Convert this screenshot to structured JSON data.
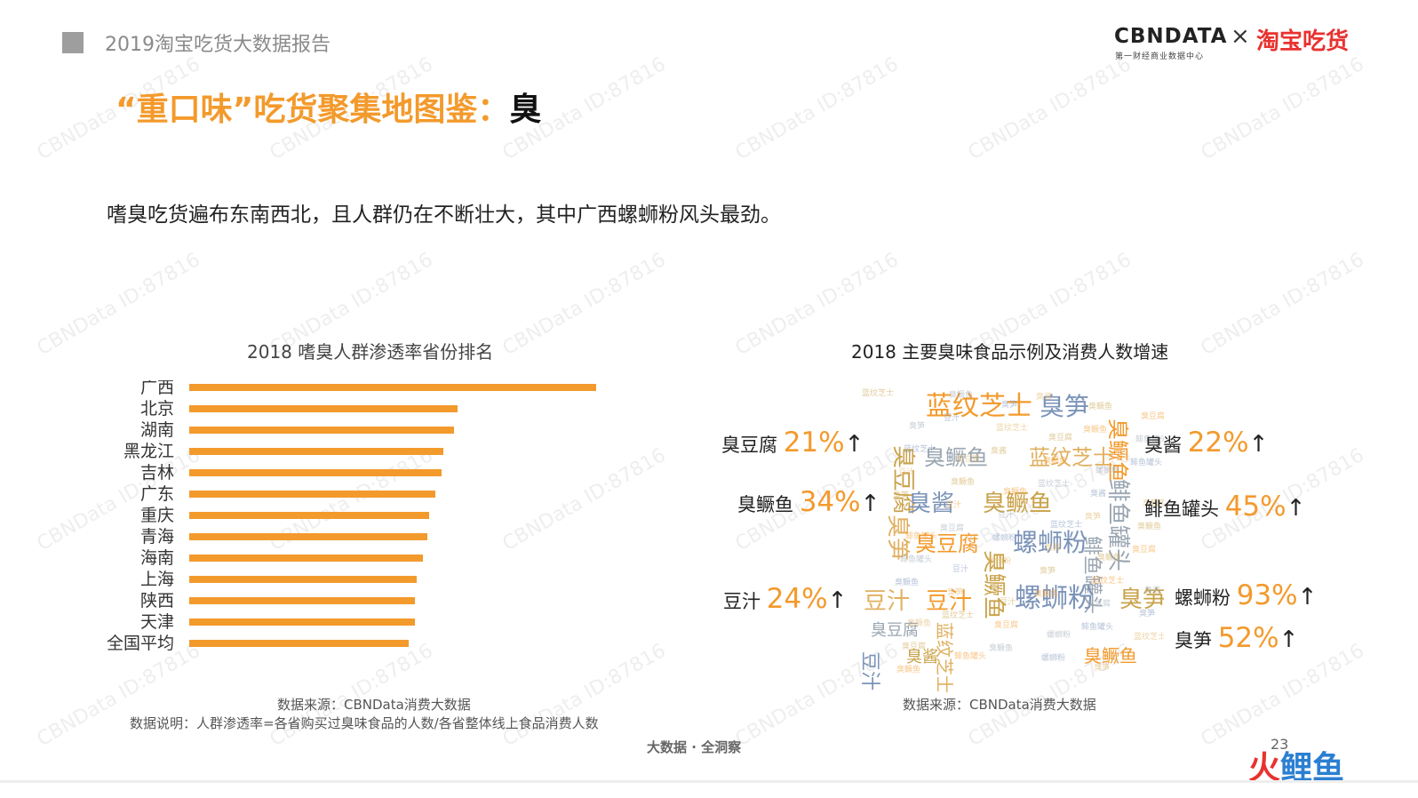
{
  "header": {
    "report_title": "2019淘宝吃货大数据报告",
    "heading_orange": "“重口味”吃货聚集地图鉴：",
    "heading_dark": "臭",
    "subtitle": "嗜臭吃货遍布东南西北，且人群仍在不断壮大，其中广西螺蛳粉风头最劲。"
  },
  "brand": {
    "cbn": "CBNDATA",
    "cbn_sub": "第一财经商业数据中心",
    "times": "×",
    "taobao": "淘宝吃货"
  },
  "bar_chart": {
    "title": "2018 嗜臭人群渗透率省份排名",
    "source": "数据来源：CBNData消费大数据",
    "explain": "数据说明：人群渗透率=各省购买过臭味食品的人数/各省整体线上食品消费人数"
  },
  "chart_data": {
    "type": "bar",
    "orientation": "horizontal",
    "categories": [
      "广西",
      "北京",
      "湖南",
      "黑龙江",
      "吉林",
      "广东",
      "重庆",
      "青海",
      "海南",
      "上海",
      "陕西",
      "天津",
      "全国平均"
    ],
    "values": [
      1.0,
      0.66,
      0.65,
      0.625,
      0.62,
      0.605,
      0.59,
      0.585,
      0.575,
      0.56,
      0.555,
      0.555,
      0.54
    ],
    "value_unit": "relative to 广西",
    "color": "#f39a2c",
    "xlabel": "",
    "ylabel": "",
    "grid": false,
    "legend": "none"
  },
  "cloud": {
    "title": "2018 主要臭味食品示例及消费人数增速",
    "source": "数据来源：CBNData消费大数据",
    "items": [
      {
        "name": "臭豆腐",
        "pct": "21%",
        "arrow": "↑"
      },
      {
        "name": "臭酱",
        "pct": "22%",
        "arrow": "↑"
      },
      {
        "name": "臭鳜鱼",
        "pct": "34%",
        "arrow": "↑"
      },
      {
        "name": "鲱鱼罐头",
        "pct": "45%",
        "arrow": "↑"
      },
      {
        "name": "豆汁",
        "pct": "24%",
        "arrow": "↑"
      },
      {
        "name": "螺蛳粉",
        "pct": "93%",
        "arrow": "↑"
      },
      {
        "name": "臭笋",
        "pct": "52%",
        "arrow": "↑"
      }
    ],
    "words": [
      "蓝纹芝士",
      "臭笋",
      "臭豆腐",
      "臭鳜鱼",
      "蓝纹芝士",
      "臭鳜鱼",
      "臭酱",
      "臭鳜鱼",
      "鲱鱼罐头",
      "臭笋",
      "臭豆腐",
      "螺蛳粉",
      "臭鳜鱼",
      "鲱鱼罐头",
      "豆汁",
      "豆汁",
      "螺蛳粉",
      "臭笋",
      "臭豆腐",
      "蓝纹芝士",
      "臭鳜鱼",
      "豆汁",
      "臭酱"
    ],
    "word_colors": [
      "#f39a2c",
      "#7b93b8",
      "#c9a24a",
      "#9aa6b2",
      "#e0b060"
    ]
  },
  "footer": {
    "tag": "大数据 · 全洞察",
    "page_number": "23",
    "logo_a": "火",
    "logo_b": "鲤鱼"
  },
  "watermark": "CBNData ID:87816"
}
